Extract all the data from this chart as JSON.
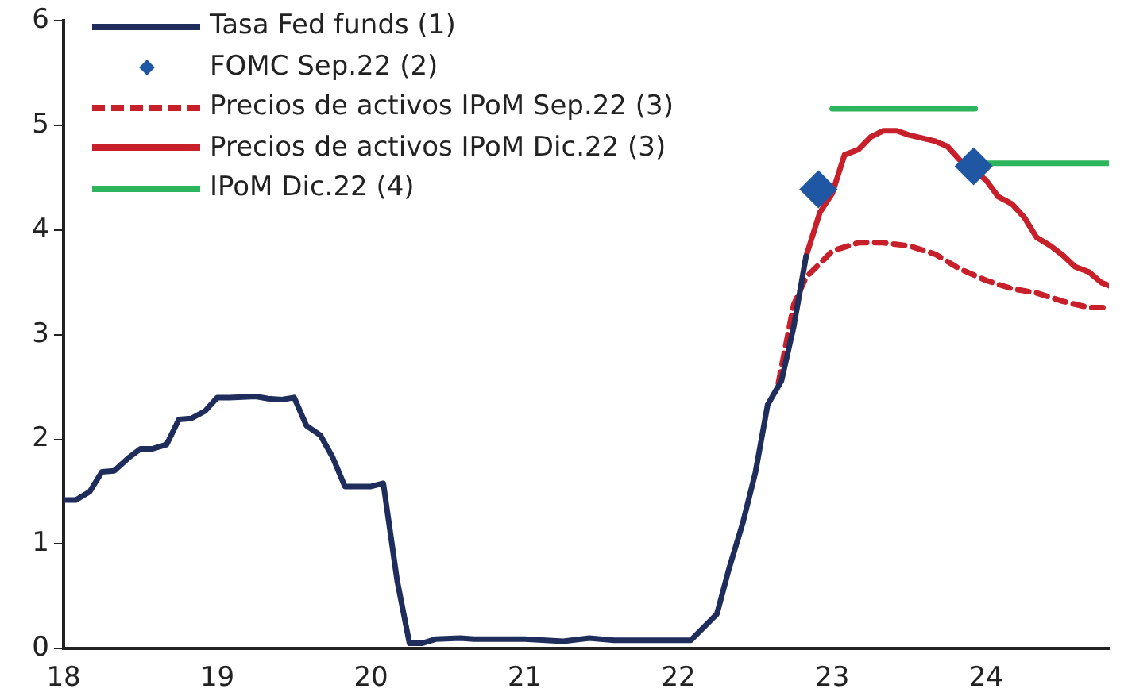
{
  "chart_data": {
    "type": "line",
    "xlim": [
      18,
      24.8
    ],
    "xticks": [
      18,
      19,
      20,
      21,
      22,
      23,
      24
    ],
    "ylim": [
      0,
      6
    ],
    "yticks": [
      0,
      1,
      2,
      3,
      4,
      5,
      6
    ],
    "grid": false,
    "legend": "top left",
    "series": [
      {
        "name": "Tasa Fed funds (1)",
        "type": "line",
        "color": "#1f2d5c",
        "line_style": "solid",
        "marker": "none",
        "x": [
          18.0,
          18.08,
          18.17,
          18.25,
          18.33,
          18.42,
          18.5,
          18.58,
          18.67,
          18.75,
          18.83,
          18.92,
          19.0,
          19.08,
          19.25,
          19.33,
          19.42,
          19.5,
          19.58,
          19.67,
          19.75,
          19.83,
          19.92,
          20.0,
          20.08,
          20.17,
          20.25,
          20.33,
          20.42,
          20.58,
          20.67,
          21.0,
          21.25,
          21.42,
          21.58,
          22.0,
          22.08,
          22.25,
          22.33,
          22.42,
          22.5,
          22.58,
          22.67,
          22.75,
          22.83
        ],
        "values": [
          1.42,
          1.42,
          1.5,
          1.69,
          1.7,
          1.82,
          1.91,
          1.91,
          1.95,
          2.19,
          2.2,
          2.27,
          2.4,
          2.4,
          2.41,
          2.39,
          2.38,
          2.4,
          2.13,
          2.04,
          1.83,
          1.55,
          1.55,
          1.55,
          1.58,
          0.65,
          0.05,
          0.05,
          0.09,
          0.1,
          0.09,
          0.09,
          0.07,
          0.1,
          0.08,
          0.08,
          0.08,
          0.33,
          0.77,
          1.21,
          1.68,
          2.33,
          2.56,
          3.08,
          3.75
        ]
      },
      {
        "name": "FOMC Sep.22 (2)",
        "type": "scatter",
        "color": "#1f57a5",
        "marker": "diamond",
        "x": [
          22.91,
          23.92
        ],
        "values": [
          4.39,
          4.61
        ]
      },
      {
        "name": "Precios de activos IPoM Sep.22 (3)",
        "type": "line",
        "color": "#c8202a",
        "line_style": "dashed",
        "marker": "none",
        "x": [
          22.65,
          22.75,
          22.83,
          22.92,
          23.0,
          23.17,
          23.33,
          23.5,
          23.67,
          23.83,
          24.0,
          24.17,
          24.33,
          24.5,
          24.67,
          24.8
        ],
        "values": [
          2.54,
          3.29,
          3.55,
          3.68,
          3.8,
          3.88,
          3.88,
          3.85,
          3.77,
          3.63,
          3.52,
          3.44,
          3.4,
          3.32,
          3.26,
          3.26
        ]
      },
      {
        "name": "Precios de activos IPoM Dic.22 (3)",
        "type": "line",
        "color": "#c8202a",
        "line_style": "solid",
        "marker": "none",
        "x": [
          22.83,
          22.92,
          23.0,
          23.08,
          23.17,
          23.25,
          23.33,
          23.42,
          23.5,
          23.67,
          23.75,
          23.83,
          24.0,
          24.08,
          24.17,
          24.25,
          24.33,
          24.42,
          24.5,
          24.58,
          24.67,
          24.75,
          24.8
        ],
        "values": [
          3.75,
          4.17,
          4.35,
          4.72,
          4.77,
          4.89,
          4.95,
          4.95,
          4.91,
          4.85,
          4.8,
          4.67,
          4.48,
          4.32,
          4.25,
          4.12,
          3.93,
          3.85,
          3.76,
          3.65,
          3.6,
          3.5,
          3.47
        ]
      },
      {
        "name": "IPoM Dic.22 (4)",
        "type": "line",
        "color": "#2db55d",
        "line_style": "solid",
        "marker": "none",
        "x": [
          23.0,
          23.93,
          23.95,
          23.97,
          24.8
        ],
        "values": [
          5.16,
          5.16,
          null,
          4.64,
          4.64
        ]
      }
    ]
  }
}
